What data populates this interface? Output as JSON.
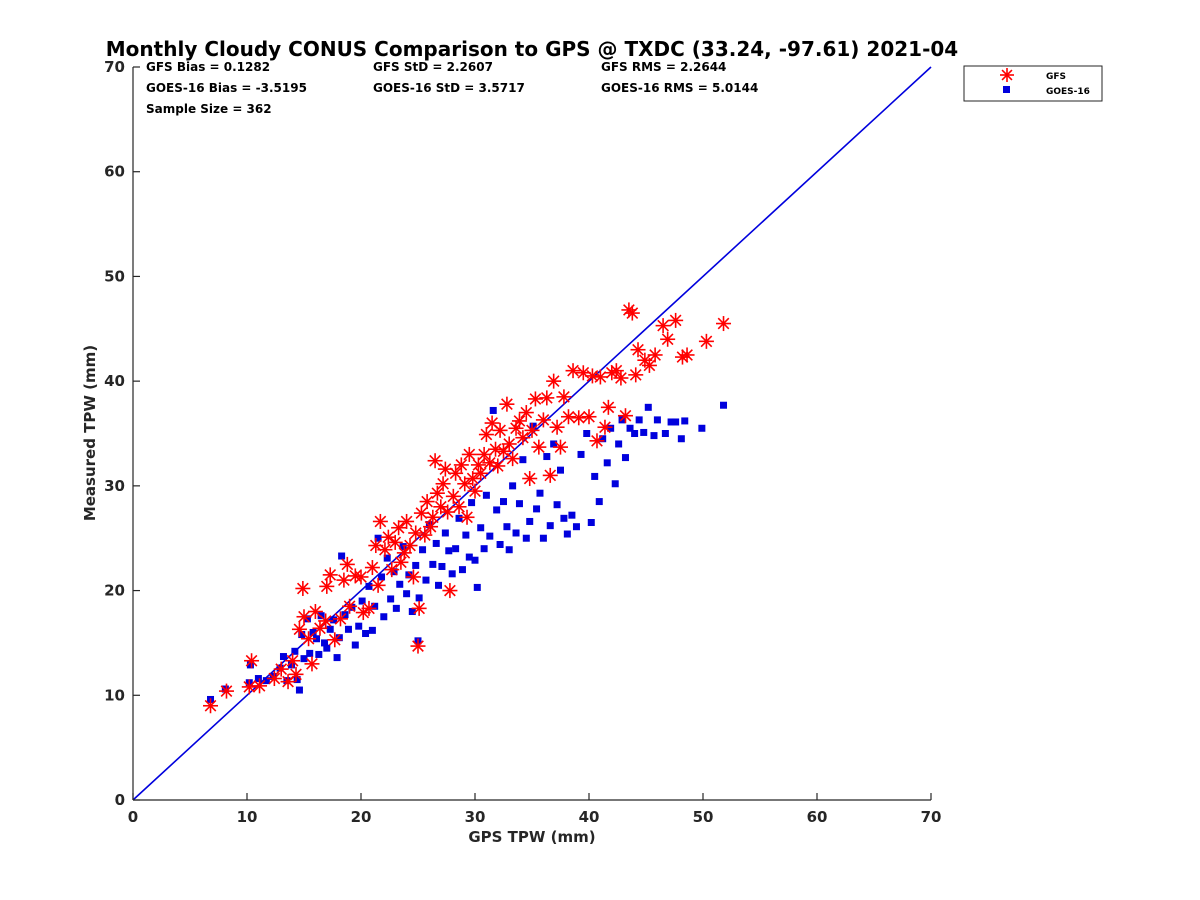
{
  "colors": {
    "gfs": "#ff0000",
    "goes": "#0000dd",
    "one_to_one_line": "#0000dd",
    "axes": "#262626",
    "background": "#ffffff"
  },
  "stats": {
    "gfs_bias": "GFS Bias = 0.1282",
    "gfs_std": "GFS StD = 2.2607",
    "gfs_rms": "GFS RMS = 2.2644",
    "goes_bias": "GOES-16 Bias = -3.5195",
    "goes_std": "GOES-16 StD = 3.5717",
    "goes_rms": "GOES-16 RMS = 5.0144",
    "sample_size": "Sample Size = 362"
  },
  "chart_data": {
    "type": "scatter",
    "title": "Monthly Cloudy CONUS Comparison to GPS @ TXDC (33.24, -97.61) 2021-04",
    "xlabel": "GPS TPW (mm)",
    "ylabel": "Measured TPW (mm)",
    "xlim": [
      0,
      70
    ],
    "ylim": [
      0,
      70
    ],
    "xticks": [
      0,
      10,
      20,
      30,
      40,
      50,
      60,
      70
    ],
    "yticks": [
      0,
      10,
      20,
      30,
      40,
      50,
      60,
      70
    ],
    "grid": false,
    "legend_position": "outside-top-right",
    "reference_line": {
      "x": [
        0,
        70
      ],
      "y": [
        0,
        70
      ]
    },
    "series": [
      {
        "name": "GFS",
        "marker": "asterisk",
        "points": [
          [
            6.8,
            9.0
          ],
          [
            8.2,
            10.4
          ],
          [
            10.2,
            10.8
          ],
          [
            10.4,
            13.3
          ],
          [
            11.1,
            10.9
          ],
          [
            12.4,
            11.6
          ],
          [
            13.0,
            12.5
          ],
          [
            13.6,
            11.3
          ],
          [
            14.0,
            13.3
          ],
          [
            14.3,
            12.0
          ],
          [
            14.6,
            16.3
          ],
          [
            14.9,
            20.2
          ],
          [
            15.0,
            17.5
          ],
          [
            15.4,
            15.4
          ],
          [
            15.7,
            13.0
          ],
          [
            16.0,
            18.0
          ],
          [
            16.4,
            16.4
          ],
          [
            16.9,
            17.1
          ],
          [
            17.0,
            20.4
          ],
          [
            17.3,
            21.5
          ],
          [
            17.7,
            15.3
          ],
          [
            18.2,
            17.3
          ],
          [
            18.5,
            21.0
          ],
          [
            18.8,
            22.5
          ],
          [
            19.0,
            18.5
          ],
          [
            19.5,
            21.4
          ],
          [
            20.0,
            21.3
          ],
          [
            20.2,
            17.9
          ],
          [
            20.7,
            18.3
          ],
          [
            21.0,
            22.2
          ],
          [
            21.3,
            24.3
          ],
          [
            21.5,
            20.5
          ],
          [
            21.7,
            26.6
          ],
          [
            22.1,
            23.9
          ],
          [
            22.4,
            25.1
          ],
          [
            22.7,
            22.0
          ],
          [
            23.0,
            24.6
          ],
          [
            23.3,
            26.0
          ],
          [
            23.5,
            22.7
          ],
          [
            23.8,
            23.6
          ],
          [
            24.0,
            26.6
          ],
          [
            24.3,
            24.3
          ],
          [
            24.6,
            21.3
          ],
          [
            24.8,
            25.5
          ],
          [
            25.0,
            14.7
          ],
          [
            25.1,
            18.3
          ],
          [
            25.3,
            27.4
          ],
          [
            25.6,
            25.3
          ],
          [
            25.8,
            28.5
          ],
          [
            26.1,
            26.1
          ],
          [
            26.3,
            27.0
          ],
          [
            26.5,
            32.4
          ],
          [
            26.7,
            29.3
          ],
          [
            27.0,
            28.0
          ],
          [
            27.2,
            30.2
          ],
          [
            27.4,
            31.6
          ],
          [
            27.6,
            27.5
          ],
          [
            27.8,
            20.0
          ],
          [
            28.1,
            29.0
          ],
          [
            28.3,
            31.2
          ],
          [
            28.6,
            28.0
          ],
          [
            28.8,
            32.0
          ],
          [
            29.1,
            30.2
          ],
          [
            29.3,
            27.0
          ],
          [
            29.5,
            33.0
          ],
          [
            29.8,
            30.7
          ],
          [
            30.0,
            29.5
          ],
          [
            30.3,
            32.0
          ],
          [
            30.5,
            31.2
          ],
          [
            30.8,
            33.0
          ],
          [
            31.0,
            34.9
          ],
          [
            31.3,
            32.2
          ],
          [
            31.5,
            36.0
          ],
          [
            31.8,
            33.5
          ],
          [
            32.0,
            31.9
          ],
          [
            32.2,
            35.3
          ],
          [
            32.5,
            33.3
          ],
          [
            32.8,
            37.8
          ],
          [
            33.0,
            34.0
          ],
          [
            33.3,
            32.6
          ],
          [
            33.6,
            35.5
          ],
          [
            33.9,
            36.2
          ],
          [
            34.2,
            34.6
          ],
          [
            34.5,
            37.0
          ],
          [
            34.8,
            30.7
          ],
          [
            35.0,
            35.3
          ],
          [
            35.3,
            38.3
          ],
          [
            35.6,
            33.7
          ],
          [
            36.0,
            36.3
          ],
          [
            36.3,
            38.4
          ],
          [
            36.6,
            31.0
          ],
          [
            36.9,
            40.0
          ],
          [
            37.2,
            35.6
          ],
          [
            37.5,
            33.7
          ],
          [
            37.8,
            38.5
          ],
          [
            38.2,
            36.6
          ],
          [
            38.6,
            41.0
          ],
          [
            39.1,
            36.5
          ],
          [
            39.5,
            40.8
          ],
          [
            40.0,
            36.6
          ],
          [
            40.3,
            40.5
          ],
          [
            40.7,
            34.3
          ],
          [
            41.0,
            40.4
          ],
          [
            41.4,
            35.6
          ],
          [
            41.7,
            37.5
          ],
          [
            42.0,
            40.8
          ],
          [
            42.4,
            41.0
          ],
          [
            42.8,
            40.3
          ],
          [
            43.2,
            36.7
          ],
          [
            43.5,
            46.8
          ],
          [
            43.8,
            46.5
          ],
          [
            44.1,
            40.6
          ],
          [
            44.3,
            43.0
          ],
          [
            44.9,
            42.0
          ],
          [
            45.3,
            41.5
          ],
          [
            45.8,
            42.5
          ],
          [
            46.5,
            45.3
          ],
          [
            46.9,
            44.0
          ],
          [
            47.6,
            45.8
          ],
          [
            48.2,
            42.3
          ],
          [
            48.6,
            42.5
          ],
          [
            50.3,
            43.8
          ],
          [
            51.8,
            45.5
          ]
        ]
      },
      {
        "name": "GOES-16",
        "marker": "square",
        "points": [
          [
            6.8,
            9.6
          ],
          [
            8.1,
            10.6
          ],
          [
            10.2,
            11.2
          ],
          [
            10.3,
            12.9
          ],
          [
            11.0,
            11.6
          ],
          [
            11.7,
            11.4
          ],
          [
            12.3,
            11.8
          ],
          [
            12.9,
            12.6
          ],
          [
            13.2,
            13.7
          ],
          [
            13.5,
            11.4
          ],
          [
            13.9,
            12.9
          ],
          [
            14.2,
            14.2
          ],
          [
            14.4,
            11.5
          ],
          [
            14.6,
            10.5
          ],
          [
            14.8,
            15.8
          ],
          [
            15.0,
            13.5
          ],
          [
            15.3,
            17.3
          ],
          [
            15.5,
            14.0
          ],
          [
            15.8,
            16.0
          ],
          [
            16.1,
            15.4
          ],
          [
            16.3,
            13.9
          ],
          [
            16.5,
            17.6
          ],
          [
            16.8,
            15.0
          ],
          [
            17.0,
            14.5
          ],
          [
            17.3,
            16.3
          ],
          [
            17.6,
            17.2
          ],
          [
            17.9,
            13.6
          ],
          [
            18.1,
            15.5
          ],
          [
            18.3,
            23.3
          ],
          [
            18.6,
            17.7
          ],
          [
            18.9,
            16.3
          ],
          [
            19.2,
            18.4
          ],
          [
            19.5,
            14.8
          ],
          [
            19.8,
            16.6
          ],
          [
            20.1,
            19.0
          ],
          [
            20.4,
            15.9
          ],
          [
            20.7,
            20.4
          ],
          [
            21.0,
            16.2
          ],
          [
            21.2,
            18.5
          ],
          [
            21.5,
            25.0
          ],
          [
            21.8,
            21.3
          ],
          [
            22.0,
            17.5
          ],
          [
            22.3,
            23.1
          ],
          [
            22.6,
            19.2
          ],
          [
            22.9,
            21.8
          ],
          [
            23.1,
            18.3
          ],
          [
            23.4,
            20.6
          ],
          [
            23.7,
            24.2
          ],
          [
            24.0,
            19.7
          ],
          [
            24.2,
            21.5
          ],
          [
            24.5,
            18.0
          ],
          [
            24.8,
            22.4
          ],
          [
            25.0,
            15.2
          ],
          [
            25.1,
            19.3
          ],
          [
            25.4,
            23.9
          ],
          [
            25.7,
            21.0
          ],
          [
            26.0,
            26.3
          ],
          [
            26.3,
            22.5
          ],
          [
            26.6,
            24.5
          ],
          [
            26.8,
            20.5
          ],
          [
            27.1,
            22.3
          ],
          [
            27.4,
            25.5
          ],
          [
            27.7,
            23.8
          ],
          [
            28.0,
            21.6
          ],
          [
            28.3,
            24.0
          ],
          [
            28.6,
            26.9
          ],
          [
            28.9,
            22.0
          ],
          [
            29.2,
            25.3
          ],
          [
            29.5,
            23.2
          ],
          [
            29.7,
            28.4
          ],
          [
            30.0,
            22.9
          ],
          [
            30.2,
            20.3
          ],
          [
            30.5,
            26.0
          ],
          [
            30.8,
            24.0
          ],
          [
            31.0,
            29.1
          ],
          [
            31.3,
            25.2
          ],
          [
            31.6,
            37.2
          ],
          [
            31.9,
            27.7
          ],
          [
            32.2,
            24.4
          ],
          [
            32.5,
            28.5
          ],
          [
            32.8,
            26.1
          ],
          [
            33.0,
            23.9
          ],
          [
            33.3,
            30.0
          ],
          [
            33.6,
            25.5
          ],
          [
            33.9,
            28.3
          ],
          [
            34.2,
            32.5
          ],
          [
            34.5,
            25.0
          ],
          [
            34.8,
            26.6
          ],
          [
            35.1,
            35.7
          ],
          [
            35.4,
            27.8
          ],
          [
            35.7,
            29.3
          ],
          [
            36.0,
            25.0
          ],
          [
            36.3,
            32.8
          ],
          [
            36.6,
            26.2
          ],
          [
            36.9,
            34.0
          ],
          [
            37.2,
            28.2
          ],
          [
            37.5,
            31.5
          ],
          [
            37.8,
            26.9
          ],
          [
            38.1,
            25.4
          ],
          [
            38.5,
            27.2
          ],
          [
            38.9,
            26.1
          ],
          [
            39.3,
            33.0
          ],
          [
            39.8,
            35.0
          ],
          [
            40.2,
            26.5
          ],
          [
            40.5,
            30.9
          ],
          [
            40.9,
            28.5
          ],
          [
            41.2,
            34.5
          ],
          [
            41.6,
            32.2
          ],
          [
            41.9,
            35.5
          ],
          [
            42.3,
            30.2
          ],
          [
            42.6,
            34.0
          ],
          [
            42.9,
            36.3
          ],
          [
            43.2,
            32.7
          ],
          [
            43.6,
            35.5
          ],
          [
            44.0,
            35.0
          ],
          [
            44.4,
            36.3
          ],
          [
            44.8,
            35.1
          ],
          [
            45.2,
            37.5
          ],
          [
            45.7,
            34.8
          ],
          [
            46.0,
            36.3
          ],
          [
            46.7,
            35.0
          ],
          [
            47.2,
            36.1
          ],
          [
            47.6,
            36.1
          ],
          [
            48.1,
            34.5
          ],
          [
            48.4,
            36.2
          ],
          [
            49.9,
            35.5
          ],
          [
            51.8,
            37.7
          ]
        ]
      }
    ]
  }
}
